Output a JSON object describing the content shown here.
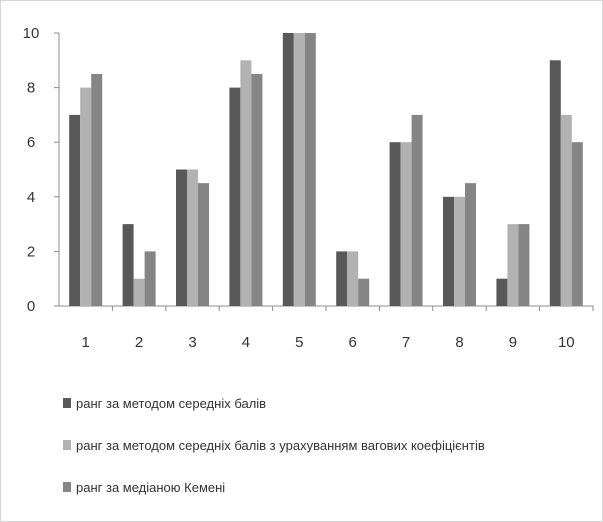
{
  "chart_data": {
    "type": "bar",
    "title": "",
    "xlabel": "",
    "ylabel": "",
    "categories": [
      "1",
      "2",
      "3",
      "4",
      "5",
      "6",
      "7",
      "8",
      "9",
      "10"
    ],
    "ylim": [
      0,
      10
    ],
    "yticks": [
      "0",
      "2",
      "4",
      "6",
      "8",
      "10"
    ],
    "grid": false,
    "legend_position": "bottom",
    "series": [
      {
        "name": "ранг за методом середніх балів",
        "color": "#595959",
        "values": [
          7,
          3,
          5,
          8,
          10,
          2,
          6,
          4,
          1,
          9
        ]
      },
      {
        "name": "ранг за методом середніх балів з урахуванням вагових коефіцієнтів",
        "color": "#b2b2b2",
        "values": [
          8,
          1,
          5,
          9,
          10,
          2,
          6,
          4,
          3,
          7
        ]
      },
      {
        "name": "ранг за медіаною Кемені",
        "color": "#858585",
        "values": [
          8.5,
          2,
          4.5,
          8.5,
          10,
          1,
          7,
          4.5,
          3,
          6
        ]
      }
    ]
  }
}
